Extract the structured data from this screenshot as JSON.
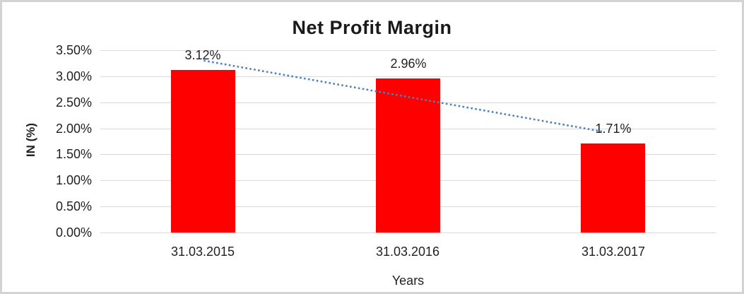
{
  "window": {
    "background_color": "#FFFFFF",
    "frame_border_color": "#D3D3D3"
  },
  "chart_data": {
    "type": "bar",
    "title": "Net Profit Margin",
    "xlabel": "Years",
    "ylabel": "IN (%)",
    "categories": [
      "31.03.2015",
      "31.03.2016",
      "31.03.2017"
    ],
    "values": [
      3.12,
      2.96,
      1.71
    ],
    "value_labels": [
      "3.12%",
      "2.96%",
      "1.71%"
    ],
    "ylim": [
      0,
      3.5
    ],
    "ytick_step": 0.5,
    "yticks_top_to_bottom": [
      "3.50%",
      "3.00%",
      "2.50%",
      "2.00%",
      "1.50%",
      "1.00%",
      "0.50%",
      "0.00%"
    ],
    "grid": true,
    "legend_position": "none",
    "bar_color": "#FF0000",
    "gridline_color": "#D9D9D9",
    "label_color": "#1F1F1F",
    "trendline": {
      "style": "dotted",
      "color": "#4F81BD",
      "x1_frac": 0.168,
      "y1_value": 3.3,
      "x2_frac": 0.815,
      "y2_value": 1.94
    }
  }
}
